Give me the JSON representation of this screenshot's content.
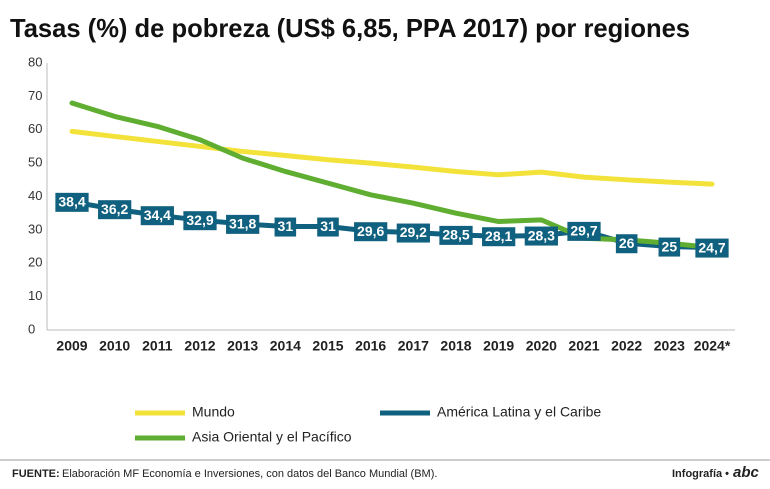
{
  "chart_data": {
    "type": "line",
    "title": "Tasas (%) de pobreza (US$ 6,85, PPA 2017) por regiones",
    "categories": [
      "2009",
      "2010",
      "2011",
      "2012",
      "2013",
      "2014",
      "2015",
      "2016",
      "2017",
      "2018",
      "2019",
      "2020",
      "2021",
      "2022",
      "2023",
      "2024*"
    ],
    "series": [
      {
        "name": "Mundo",
        "color": "#f2e23a",
        "values": [
          59.5,
          58,
          56.5,
          55,
          53.5,
          52.3,
          51,
          50,
          48.8,
          47.5,
          46.5,
          47.3,
          45.8,
          45,
          44.3,
          43.7
        ]
      },
      {
        "name": "América Latina y el Caribe",
        "color": "#10607f",
        "values": [
          38.4,
          36.2,
          34.4,
          32.9,
          31.8,
          31,
          31,
          29.6,
          29.2,
          28.5,
          28.1,
          28.3,
          29.7,
          26,
          25,
          24.7
        ],
        "value_labels": [
          "38,4",
          "36,2",
          "34,4",
          "32,9",
          "31,8",
          "31",
          "31",
          "29,6",
          "29,2",
          "28,5",
          "28,1",
          "28,3",
          "29,7",
          "26",
          "25",
          "24,7"
        ]
      },
      {
        "name": "Asia Oriental y el Pacífico",
        "color": "#5fae32",
        "values": [
          68,
          64,
          61,
          57,
          51.5,
          47.5,
          44,
          40.5,
          38,
          35,
          32.5,
          33,
          27.5,
          27,
          26,
          24.7
        ]
      }
    ],
    "ylim": [
      0,
      80
    ],
    "yticks": [
      0,
      10,
      20,
      30,
      40,
      50,
      60,
      70,
      80
    ],
    "source_label": "FUENTE:",
    "source_text": "Elaboración MF Economía e Inversiones, con datos del Banco Mundial (BM).",
    "credit": "Infografía •",
    "logo": "abc"
  }
}
